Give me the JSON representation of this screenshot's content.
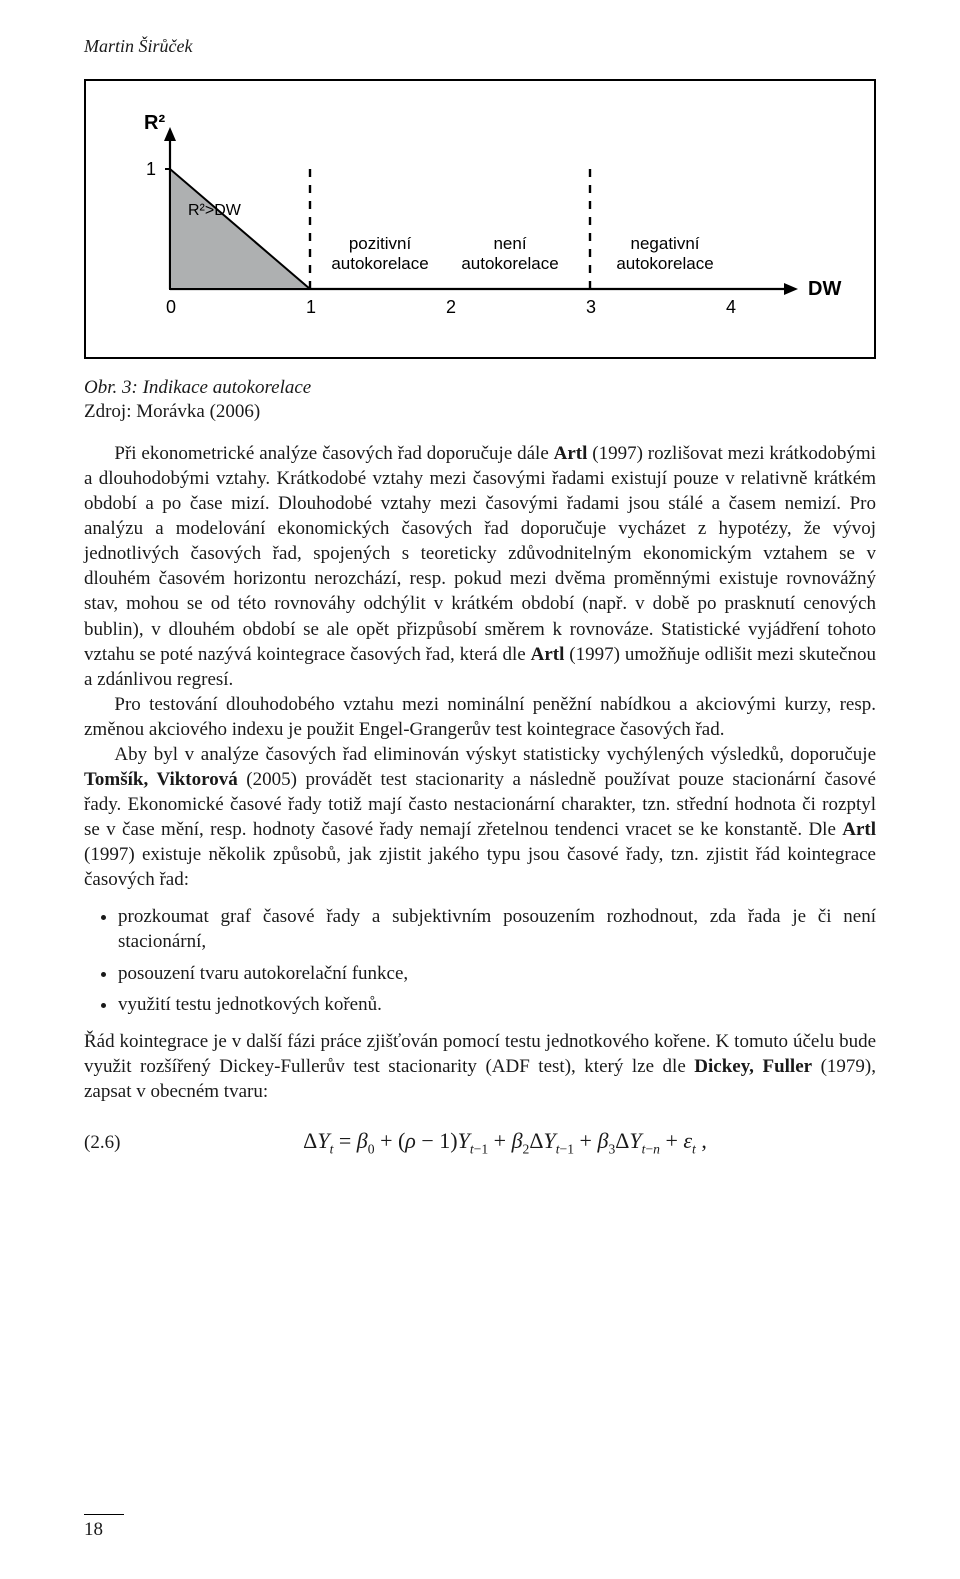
{
  "runningHead": "Martin Širůček",
  "pageNumber": "18",
  "figure": {
    "yLabel": "R²",
    "yTickLabel": "1",
    "triangleLabel": "R²>DW",
    "xLabel": "DW",
    "zones": [
      {
        "label_l1": "pozitivní",
        "label_l2": "autokorelace"
      },
      {
        "label_l1": "není",
        "label_l2": "autokorelace"
      },
      {
        "label_l1": "negativní",
        "label_l2": "autokorelace"
      }
    ],
    "xTicks": [
      "0",
      "1",
      "2",
      "3",
      "4"
    ],
    "axisColor": "#000000",
    "dashedColor": "#000000",
    "triFill": "#aeb0b1"
  },
  "caption": "Obr. 3: Indikace autokorelace",
  "source": "Zdroj: Morávka (2006)",
  "paragraphs": [
    "Při ekonometrické analýze časových řad doporučuje dále <b>Artl</b> (1997) rozlišovat mezi krátkodobými a dlouhodobými vztahy. Krátkodobé vztahy mezi časovými řadami existují pouze v relativně krátkém období a po čase mizí. Dlouhodobé vztahy mezi časovými řadami jsou stálé a časem nemizí. Pro analýzu a modelování ekonomických časových řad doporučuje vycházet z hypotézy, že vývoj jednotlivých časových řad, spojených s teoreticky zdůvodnitelným ekonomickým vztahem se v dlouhém časovém horizontu nerozchází, resp. pokud mezi dvěma proměnnými existuje rovnovážný stav, mohou se od této rovnováhy odchýlit v krátkém období (např. v době po prasknutí cenových bublin), v dlouhém období se ale opět přizpůsobí směrem k rovnováze. Statistické vyjádření tohoto vztahu se poté nazývá kointegrace časových řad, která dle <b>Artl</b> (1997) umožňuje odlišit mezi skutečnou a zdánlivou regresí.",
    "Pro testování dlouhodobého vztahu mezi nominální peněžní nabídkou a akciovými kurzy, resp. změnou akciového indexu je použit Engel-Grangerův test kointegrace časových řad.",
    "Aby byl v analýze časových řad eliminován výskyt statisticky vychýlených výsledků, doporučuje <b>Tomšík, Viktorová</b> (2005) provádět test stacionarity a následně používat pouze stacionární časové řady. Ekonomické časové řady totiž mají často nestacionární charakter, tzn. střední hodnota či rozptyl se v čase mění, resp. hodnoty časové řady nemají zřetelnou tendenci vracet se ke konstantě. Dle <b>Artl</b> (1997) existuje několik způsobů, jak zjistit jakého typu jsou časové řady, tzn. zjistit řád kointegrace časových řad:"
  ],
  "bullets": [
    "prozkoumat graf časové řady a subjektivním posouzením rozhodnout, zda řada je či není stacionární,",
    "posouzení tvaru autokorelační funkce,",
    "využití testu jednotkových kořenů."
  ],
  "afterBullets": "Řád kointegrace je v další fázi práce zjišťován pomocí testu jednotkového kořene. K tomuto účelu bude využit rozšířený Dickey-Fullerův test stacionarity (ADF test), který lze dle <b>Dickey, Fuller</b> (1979), zapsat v obecném tvaru:",
  "equation": {
    "number": "(2.6)",
    "html": "Δ<i>Y</i><span class=\"sub\"><i>t</i></span> = <i>β</i><span class=\"sub\">0</span> + (<i>ρ</i> − 1)<i>Y</i><span class=\"sub\"><i>t</i>−1</span> + <i>β</i><span class=\"sub\">2</span>Δ<i>Y</i><span class=\"sub\"><i>t</i>−1</span> + <i>β</i><span class=\"sub\">3</span>Δ<i>Y</i><span class=\"sub\"><i>t</i>−<i>n</i></span> + <i>ε</i><span class=\"sub\"><i>t</i></span> ,"
  }
}
